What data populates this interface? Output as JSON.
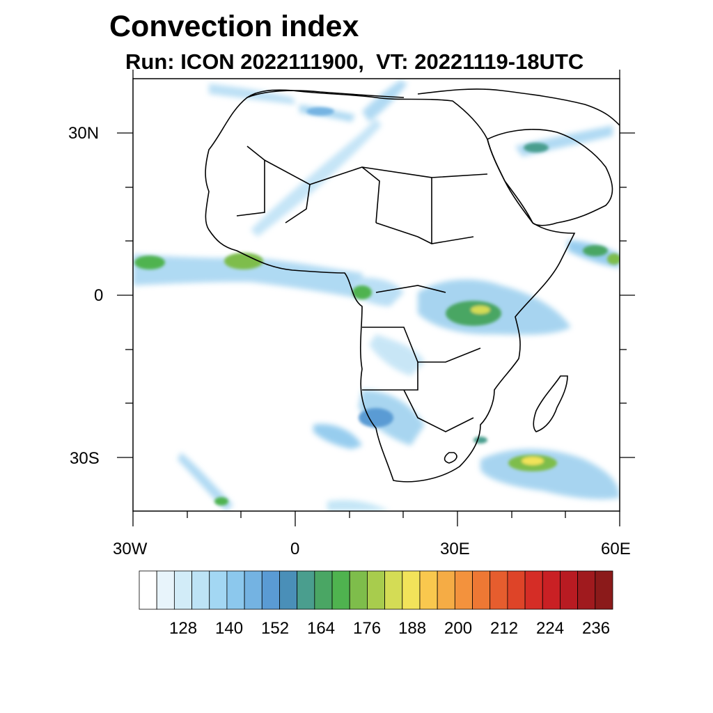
{
  "title": "Convection index",
  "subtitle": "Run: ICON 2022111900,  VT: 20221119-18UTC",
  "axes": {
    "lat_labels": [
      "30N",
      "0",
      "30S"
    ],
    "lon_labels": [
      "30W",
      "0",
      "30E",
      "60E"
    ]
  },
  "colorbar": {
    "labels": [
      "128",
      "140",
      "152",
      "164",
      "176",
      "188",
      "200",
      "212",
      "224",
      "236"
    ],
    "colors": [
      "#ffffff",
      "#e8f4fb",
      "#d2ecf8",
      "#bde3f5",
      "#a3d7f3",
      "#8cc8ed",
      "#74b3e2",
      "#5a9bd4",
      "#4a8fb8",
      "#4a9e8e",
      "#4aa664",
      "#4fb34f",
      "#7ebd4b",
      "#a8cc4d",
      "#d4dc55",
      "#f2e35a",
      "#f9c84e",
      "#f5ac45",
      "#f3923d",
      "#ee7834",
      "#e65d2e",
      "#de4428",
      "#d52d26",
      "#c92024",
      "#b81b22",
      "#a01a1e",
      "#8b1a1a"
    ]
  }
}
